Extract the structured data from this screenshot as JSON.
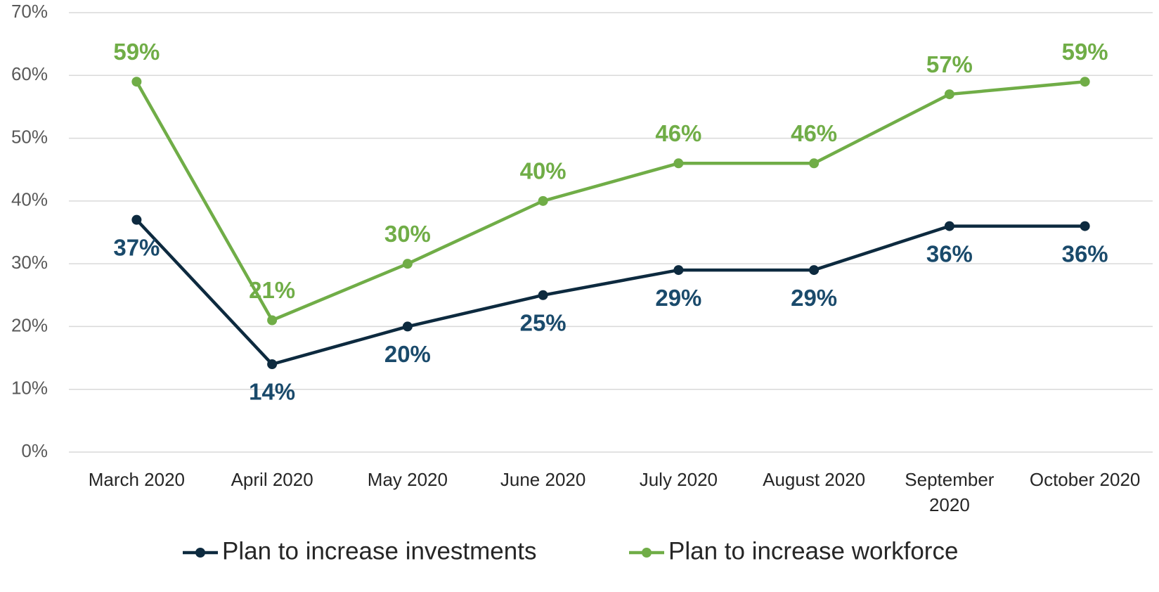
{
  "chart_data": {
    "type": "line",
    "categories": [
      "March 2020",
      "April 2020",
      "May 2020",
      "June 2020",
      "July 2020",
      "August 2020",
      "September 2020",
      "October 2020"
    ],
    "series": [
      {
        "name": "Plan to increase investments",
        "color": "#0d2a3f",
        "label_color": "#1a4a6b",
        "values": [
          37,
          14,
          20,
          25,
          29,
          29,
          36,
          36
        ],
        "value_labels": [
          "37%",
          "14%",
          "20%",
          "25%",
          "29%",
          "29%",
          "36%",
          "36%"
        ]
      },
      {
        "name": "Plan to increase workforce",
        "color": "#70ad47",
        "label_color": "#70ad47",
        "values": [
          59,
          21,
          30,
          40,
          46,
          46,
          57,
          59
        ],
        "value_labels": [
          "59%",
          "21%",
          "30%",
          "40%",
          "46%",
          "46%",
          "57%",
          "59%"
        ]
      }
    ],
    "ylim": [
      0,
      70
    ],
    "yticks": [
      {
        "value": 0,
        "label": "0%"
      },
      {
        "value": 10,
        "label": "10%"
      },
      {
        "value": 20,
        "label": "20%"
      },
      {
        "value": 30,
        "label": "30%"
      },
      {
        "value": 40,
        "label": "40%"
      },
      {
        "value": 50,
        "label": "50%"
      },
      {
        "value": 60,
        "label": "60%"
      },
      {
        "value": 70,
        "label": "70%"
      }
    ],
    "grid": true,
    "legend": "bottom"
  }
}
